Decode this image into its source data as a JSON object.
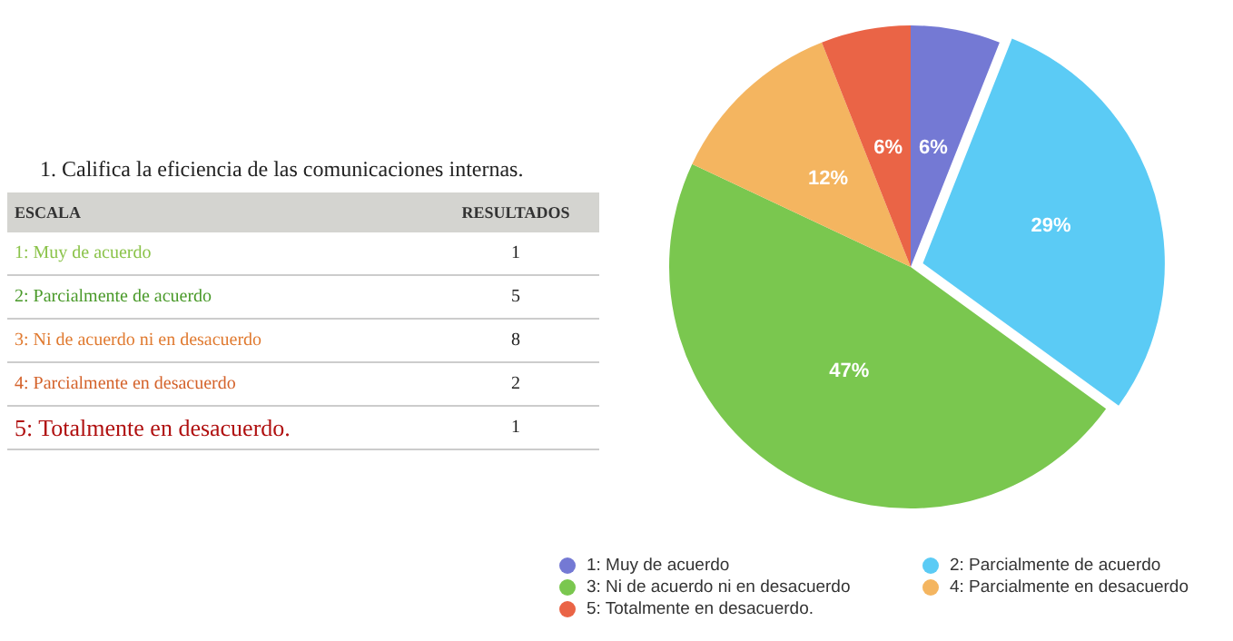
{
  "chart_data": [
    {
      "type": "other",
      "title": "1. Califica la eficiencia de las comunicaciones internas.",
      "categories": [
        "1: Muy de acuerdo",
        "2: Parcialmente de acuerdo",
        "3: Ni de acuerdo ni en desacuerdo",
        "4: Parcialmente en desacuerdo",
        "5: Totalmente en desacuerdo."
      ],
      "values": [
        1,
        5,
        8,
        2,
        1
      ],
      "data_labels": true,
      "annotations": [
        "ESCALA",
        "RESULTADOS"
      ]
    },
    {
      "type": "pie",
      "categories": [
        "1: Muy de acuerdo",
        "2: Parcialmente de acuerdo",
        "3: Ni de acuerdo ni en desacuerdo",
        "4: Parcialmente en desacuerdo",
        "5: Totalmente en desacuerdo."
      ],
      "values": [
        6,
        29,
        47,
        12,
        6
      ],
      "colors": [
        "#7479d4",
        "#5bcbf5",
        "#7ac74f",
        "#f4b560",
        "#ea6446"
      ],
      "value_labels": [
        "6%",
        "29%",
        "47%",
        "12%",
        "6%"
      ],
      "legend": "bottom"
    }
  ]
}
